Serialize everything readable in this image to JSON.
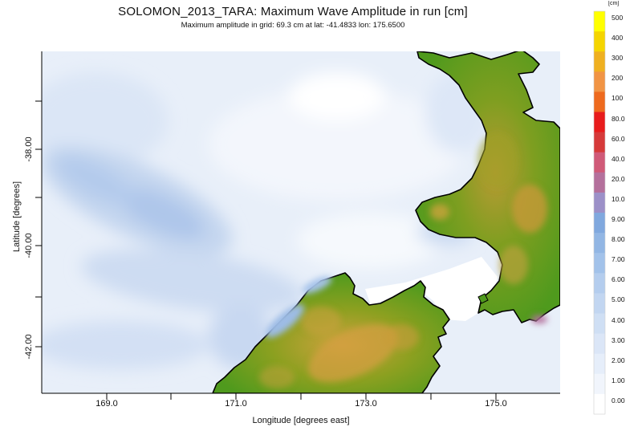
{
  "title": "SOLOMON_2013_TARA: Maximum Wave Amplitude in run [cm]",
  "subtitle": "Maximum amplitude in grid: 69.3 cm at lat: -41.4833 lon: 175.6500",
  "axes": {
    "xlabel": "Longitude [degrees east]",
    "ylabel": "Latitude [degrees]",
    "xticks": [
      "169.0",
      "171.0",
      "173.0",
      "175.0"
    ],
    "yticks": [
      "-38.00",
      "-40.00",
      "-42.00"
    ],
    "xlim": [
      168.0,
      176.0
    ],
    "ylim": [
      -42.9,
      -36.9
    ]
  },
  "legend": {
    "unit": "[cm]",
    "levels": [
      {
        "label": "500",
        "color": "#ffff00"
      },
      {
        "label": "400",
        "color": "#f5d500"
      },
      {
        "label": "300",
        "color": "#efb020"
      },
      {
        "label": "200",
        "color": "#f19444"
      },
      {
        "label": "100",
        "color": "#ee6a1e"
      },
      {
        "label": "80.0",
        "color": "#e81c1c"
      },
      {
        "label": "60.0",
        "color": "#d63a3a"
      },
      {
        "label": "40.0",
        "color": "#d05a78"
      },
      {
        "label": "20.0",
        "color": "#b4709c"
      },
      {
        "label": "10.0",
        "color": "#9c90c8"
      },
      {
        "label": "9.00",
        "color": "#80a8de"
      },
      {
        "label": "8.00",
        "color": "#92b6e4"
      },
      {
        "label": "7.00",
        "color": "#a2c2ea"
      },
      {
        "label": "6.00",
        "color": "#b4cdee"
      },
      {
        "label": "5.00",
        "color": "#c2d6f1"
      },
      {
        "label": "4.00",
        "color": "#cfdff4"
      },
      {
        "label": "3.00",
        "color": "#dbe6f7"
      },
      {
        "label": "2.00",
        "color": "#e6eefa"
      },
      {
        "label": "1.00",
        "color": "#f1f5fc"
      },
      {
        "label": "0.00",
        "color": "#ffffff"
      }
    ]
  },
  "colors": {
    "land_low": "#4f9d1f",
    "land_mid": "#7fa01f",
    "land_high": "#c4a43a",
    "coastline": "#000000"
  }
}
